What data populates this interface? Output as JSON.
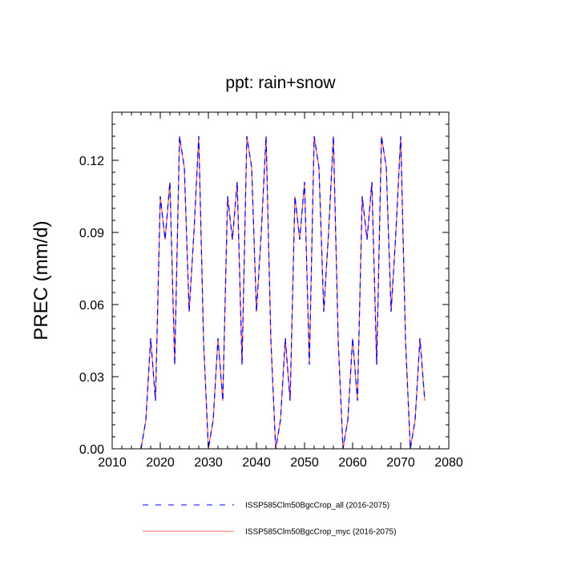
{
  "chart_data": {
    "type": "line",
    "title": "ppt: rain+snow",
    "xlabel": "",
    "ylabel": "PREC  (mm/d)",
    "xlim": [
      2010,
      2080
    ],
    "ylim": [
      0.0,
      0.14
    ],
    "xticks": [
      2010,
      2020,
      2030,
      2040,
      2050,
      2060,
      2070,
      2080
    ],
    "xtick_labels": [
      "2010",
      "2020",
      "2030",
      "2040",
      "2050",
      "2060",
      "2070",
      "2080"
    ],
    "yticks": [
      0.0,
      0.03,
      0.06,
      0.09,
      0.12
    ],
    "ytick_labels": [
      "0.00",
      "0.03",
      "0.06",
      "0.09",
      "0.12"
    ],
    "grid": false,
    "legend_position": "bottom",
    "x": [
      2016,
      2017,
      2018,
      2019,
      2020,
      2021,
      2022,
      2023,
      2024,
      2025,
      2026,
      2027,
      2028,
      2029,
      2030,
      2031,
      2032,
      2033,
      2034,
      2035,
      2036,
      2037,
      2038,
      2039,
      2040,
      2041,
      2042,
      2043,
      2044,
      2045,
      2046,
      2047,
      2048,
      2049,
      2050,
      2051,
      2052,
      2053,
      2054,
      2055,
      2056,
      2057,
      2058,
      2059,
      2060,
      2061,
      2062,
      2063,
      2064,
      2065,
      2066,
      2067,
      2068,
      2069,
      2070,
      2071,
      2072,
      2073,
      2074,
      2075
    ],
    "series": [
      {
        "name": "ISSP585Clm50BgcCrop_all (2016-2075)",
        "color": "#0000ff",
        "dash": "dashed",
        "values": [
          0.0,
          0.012,
          0.046,
          0.02,
          0.105,
          0.087,
          0.111,
          0.035,
          0.13,
          0.117,
          0.057,
          0.09,
          0.13,
          0.045,
          0.0,
          0.012,
          0.046,
          0.02,
          0.105,
          0.087,
          0.111,
          0.035,
          0.13,
          0.117,
          0.057,
          0.09,
          0.13,
          0.045,
          0.0,
          0.012,
          0.046,
          0.02,
          0.105,
          0.087,
          0.111,
          0.035,
          0.13,
          0.117,
          0.057,
          0.09,
          0.13,
          0.045,
          0.0,
          0.012,
          0.046,
          0.02,
          0.105,
          0.087,
          0.111,
          0.035,
          0.13,
          0.117,
          0.057,
          0.09,
          0.13,
          0.045,
          0.0,
          0.012,
          0.046,
          0.02
        ]
      },
      {
        "name": "ISSP585Clm50BgcCrop_myc (2016-2075)",
        "color": "#ff6060",
        "dash": "solid",
        "values": [
          0.0,
          0.012,
          0.046,
          0.02,
          0.105,
          0.087,
          0.111,
          0.035,
          0.13,
          0.117,
          0.057,
          0.09,
          0.13,
          0.045,
          0.0,
          0.012,
          0.046,
          0.02,
          0.105,
          0.087,
          0.111,
          0.035,
          0.13,
          0.117,
          0.057,
          0.09,
          0.13,
          0.045,
          0.0,
          0.012,
          0.046,
          0.02,
          0.105,
          0.087,
          0.111,
          0.035,
          0.13,
          0.117,
          0.057,
          0.09,
          0.13,
          0.045,
          0.0,
          0.012,
          0.046,
          0.02,
          0.105,
          0.087,
          0.111,
          0.035,
          0.13,
          0.117,
          0.057,
          0.09,
          0.13,
          0.045,
          0.0,
          0.012,
          0.046,
          0.02
        ]
      }
    ]
  }
}
